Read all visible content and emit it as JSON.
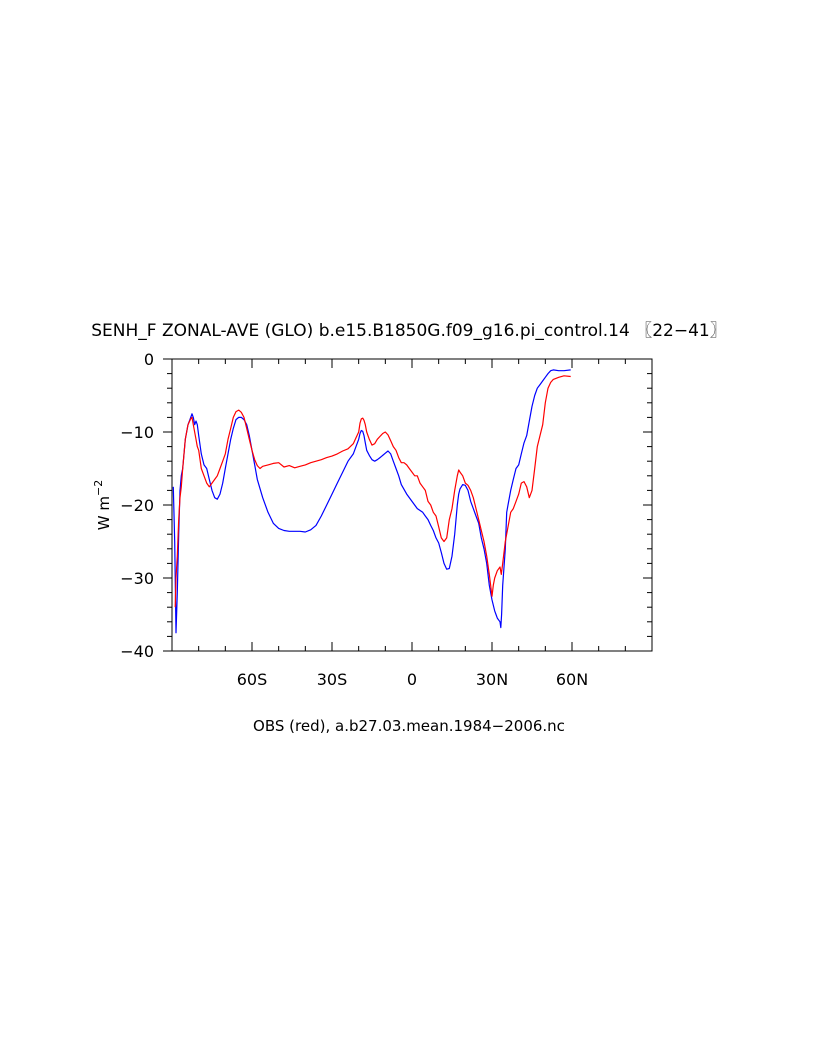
{
  "chart_data": {
    "type": "line",
    "title": "SENH_F ZONAL-AVE (GLO) b.e15.B1850G.f09_g16.pi_control.14 〖22−41〗",
    "ylabel_base": "W m",
    "ylabel_exp": "−2",
    "xlabel": "OBS (red), a.b27.03.mean.1984−2006.nc",
    "xlim": [
      -90,
      90
    ],
    "ylim": [
      -40,
      0
    ],
    "x_ticks": [
      {
        "value": -60,
        "label": "60S"
      },
      {
        "value": -30,
        "label": "30S"
      },
      {
        "value": 0,
        "label": "0"
      },
      {
        "value": 30,
        "label": "30N"
      },
      {
        "value": 60,
        "label": "60N"
      }
    ],
    "y_ticks": [
      {
        "value": 0,
        "label": "0"
      },
      {
        "value": -10,
        "label": "−10"
      },
      {
        "value": -20,
        "label": "−20"
      },
      {
        "value": -30,
        "label": "−30"
      },
      {
        "value": -40,
        "label": "−40"
      }
    ],
    "grid": false,
    "series": [
      {
        "color": "#0000ff",
        "points": [
          [
            -89.5,
            -17.5
          ],
          [
            -89,
            -25
          ],
          [
            -88.5,
            -37.5
          ],
          [
            -88,
            -32
          ],
          [
            -87.5,
            -24
          ],
          [
            -87,
            -18
          ],
          [
            -86.5,
            -16
          ],
          [
            -86,
            -15
          ],
          [
            -85.5,
            -13
          ],
          [
            -85,
            -11
          ],
          [
            -84,
            -9
          ],
          [
            -83,
            -8
          ],
          [
            -82.5,
            -7.5
          ],
          [
            -82,
            -8
          ],
          [
            -81.5,
            -9
          ],
          [
            -81,
            -8.5
          ],
          [
            -80.5,
            -9
          ],
          [
            -80,
            -10.5
          ],
          [
            -79,
            -13
          ],
          [
            -78,
            -14.5
          ],
          [
            -77,
            -15
          ],
          [
            -76,
            -16.5
          ],
          [
            -75,
            -18
          ],
          [
            -74,
            -19
          ],
          [
            -73,
            -19.2
          ],
          [
            -72,
            -18.5
          ],
          [
            -71,
            -17
          ],
          [
            -70,
            -15
          ],
          [
            -69,
            -13
          ],
          [
            -68,
            -11
          ],
          [
            -67,
            -9.5
          ],
          [
            -66,
            -8.3
          ],
          [
            -65,
            -8
          ],
          [
            -64,
            -8
          ],
          [
            -63,
            -8.3
          ],
          [
            -62,
            -9
          ],
          [
            -61,
            -10.5
          ],
          [
            -60,
            -12.5
          ],
          [
            -59,
            -14.5
          ],
          [
            -58,
            -16.5
          ],
          [
            -56,
            -19
          ],
          [
            -54,
            -21
          ],
          [
            -52,
            -22.5
          ],
          [
            -50,
            -23.2
          ],
          [
            -48,
            -23.5
          ],
          [
            -46,
            -23.6
          ],
          [
            -44,
            -23.6
          ],
          [
            -42,
            -23.6
          ],
          [
            -40,
            -23.7
          ],
          [
            -38,
            -23.4
          ],
          [
            -36,
            -22.8
          ],
          [
            -34,
            -21.5
          ],
          [
            -32,
            -20
          ],
          [
            -30,
            -18.5
          ],
          [
            -28,
            -17
          ],
          [
            -26,
            -15.5
          ],
          [
            -24,
            -14
          ],
          [
            -22,
            -13
          ],
          [
            -21,
            -12
          ],
          [
            -20,
            -11
          ],
          [
            -19.5,
            -10.2
          ],
          [
            -19,
            -9.8
          ],
          [
            -18.5,
            -9.9
          ],
          [
            -18,
            -10.5
          ],
          [
            -17.5,
            -11.5
          ],
          [
            -17,
            -12.5
          ],
          [
            -16,
            -13.2
          ],
          [
            -15,
            -13.8
          ],
          [
            -14,
            -14
          ],
          [
            -13,
            -13.8
          ],
          [
            -12,
            -13.5
          ],
          [
            -11,
            -13.2
          ],
          [
            -10,
            -12.9
          ],
          [
            -9,
            -12.6
          ],
          [
            -8,
            -13
          ],
          [
            -7,
            -14
          ],
          [
            -6,
            -15
          ],
          [
            -5,
            -16
          ],
          [
            -4,
            -17.2
          ],
          [
            -2,
            -18.5
          ],
          [
            0,
            -19.5
          ],
          [
            2,
            -20.5
          ],
          [
            4,
            -21
          ],
          [
            5,
            -21.5
          ],
          [
            6,
            -22
          ],
          [
            7,
            -22.8
          ],
          [
            8,
            -23.5
          ],
          [
            9,
            -24.5
          ],
          [
            10,
            -25.2
          ],
          [
            11,
            -26.5
          ],
          [
            12,
            -28
          ],
          [
            13,
            -28.8
          ],
          [
            14,
            -28.7
          ],
          [
            15,
            -27
          ],
          [
            16,
            -24
          ],
          [
            17,
            -20
          ],
          [
            17.5,
            -18.5
          ],
          [
            18,
            -17.8
          ],
          [
            19,
            -17.2
          ],
          [
            20,
            -17.3
          ],
          [
            21,
            -18
          ],
          [
            22,
            -19.5
          ],
          [
            23,
            -20.5
          ],
          [
            24,
            -21.5
          ],
          [
            25,
            -22.5
          ],
          [
            26,
            -24.5
          ],
          [
            27,
            -26
          ],
          [
            28,
            -28
          ],
          [
            29,
            -31
          ],
          [
            30,
            -33
          ],
          [
            31,
            -34.5
          ],
          [
            31.5,
            -35
          ],
          [
            32,
            -35.5
          ],
          [
            33,
            -36
          ],
          [
            33.3,
            -36.8
          ],
          [
            33.6,
            -35
          ],
          [
            34,
            -31
          ],
          [
            35,
            -26
          ],
          [
            35.5,
            -21
          ],
          [
            36,
            -20
          ],
          [
            37,
            -18
          ],
          [
            38,
            -16.5
          ],
          [
            39,
            -15
          ],
          [
            40,
            -14.5
          ],
          [
            41,
            -13
          ],
          [
            42,
            -11.5
          ],
          [
            43,
            -10.5
          ],
          [
            44,
            -8.5
          ],
          [
            45,
            -6.5
          ],
          [
            46,
            -5
          ],
          [
            47,
            -4
          ],
          [
            48,
            -3.5
          ],
          [
            49,
            -3
          ],
          [
            50,
            -2.5
          ],
          [
            51,
            -2
          ],
          [
            52,
            -1.6
          ],
          [
            53,
            -1.5
          ],
          [
            55,
            -1.6
          ],
          [
            57,
            -1.6
          ],
          [
            59.5,
            -1.5
          ]
        ]
      },
      {
        "color": "#ff0000",
        "points": [
          [
            -88.8,
            -34
          ],
          [
            -88.5,
            -30
          ],
          [
            -88,
            -27
          ],
          [
            -87.5,
            -22
          ],
          [
            -87,
            -19
          ],
          [
            -86.5,
            -17.5
          ],
          [
            -86,
            -15
          ],
          [
            -85.5,
            -13
          ],
          [
            -85,
            -11
          ],
          [
            -84,
            -9
          ],
          [
            -83,
            -8.2
          ],
          [
            -82.5,
            -8
          ],
          [
            -82,
            -9
          ],
          [
            -81,
            -11
          ],
          [
            -80.5,
            -12
          ],
          [
            -80,
            -12.5
          ],
          [
            -79,
            -15
          ],
          [
            -78,
            -16
          ],
          [
            -77,
            -17
          ],
          [
            -76,
            -17.5
          ],
          [
            -75,
            -17
          ],
          [
            -74,
            -16.5
          ],
          [
            -73,
            -16
          ],
          [
            -72,
            -15
          ],
          [
            -71,
            -14
          ],
          [
            -70,
            -13
          ],
          [
            -69,
            -11
          ],
          [
            -68,
            -9.5
          ],
          [
            -67,
            -8
          ],
          [
            -66,
            -7.2
          ],
          [
            -65,
            -7
          ],
          [
            -64,
            -7.3
          ],
          [
            -63,
            -8
          ],
          [
            -62,
            -9.5
          ],
          [
            -61,
            -11
          ],
          [
            -60,
            -12.5
          ],
          [
            -59,
            -13.8
          ],
          [
            -58,
            -14.6
          ],
          [
            -57,
            -15
          ],
          [
            -56,
            -14.7
          ],
          [
            -54,
            -14.5
          ],
          [
            -52,
            -14.3
          ],
          [
            -50,
            -14.2
          ],
          [
            -48,
            -14.8
          ],
          [
            -46,
            -14.6
          ],
          [
            -44,
            -14.9
          ],
          [
            -42,
            -14.7
          ],
          [
            -40,
            -14.5
          ],
          [
            -38,
            -14.2
          ],
          [
            -36,
            -14
          ],
          [
            -34,
            -13.8
          ],
          [
            -32,
            -13.5
          ],
          [
            -30,
            -13.3
          ],
          [
            -28,
            -13
          ],
          [
            -26,
            -12.6
          ],
          [
            -24,
            -12.3
          ],
          [
            -22,
            -11.6
          ],
          [
            -21,
            -10.8
          ],
          [
            -20,
            -10
          ],
          [
            -19.5,
            -8.8
          ],
          [
            -19,
            -8.2
          ],
          [
            -18.5,
            -8.1
          ],
          [
            -18,
            -8.4
          ],
          [
            -17.5,
            -9
          ],
          [
            -17,
            -10
          ],
          [
            -16,
            -11
          ],
          [
            -15,
            -11.8
          ],
          [
            -14,
            -11.6
          ],
          [
            -13,
            -11
          ],
          [
            -12,
            -10.6
          ],
          [
            -11,
            -10.2
          ],
          [
            -10,
            -10
          ],
          [
            -9,
            -10.4
          ],
          [
            -8,
            -11.2
          ],
          [
            -7,
            -12
          ],
          [
            -6,
            -12.5
          ],
          [
            -5,
            -13.5
          ],
          [
            -4,
            -14.2
          ],
          [
            -3,
            -14.2
          ],
          [
            -2,
            -14.5
          ],
          [
            -1,
            -15
          ],
          [
            0,
            -15.5
          ],
          [
            1,
            -16
          ],
          [
            2,
            -16
          ],
          [
            3,
            -17
          ],
          [
            4,
            -17.5
          ],
          [
            5,
            -18
          ],
          [
            6,
            -19.5
          ],
          [
            7,
            -20
          ],
          [
            8,
            -21
          ],
          [
            9,
            -21.5
          ],
          [
            10,
            -23
          ],
          [
            11,
            -24.5
          ],
          [
            12,
            -25
          ],
          [
            13,
            -24.5
          ],
          [
            14,
            -22
          ],
          [
            15,
            -20.5
          ],
          [
            16,
            -18
          ],
          [
            17,
            -16
          ],
          [
            17.5,
            -15.2
          ],
          [
            18,
            -15.5
          ],
          [
            19,
            -16
          ],
          [
            20,
            -17
          ],
          [
            21,
            -17.3
          ],
          [
            22,
            -18
          ],
          [
            23,
            -19
          ],
          [
            24,
            -20.5
          ],
          [
            25,
            -22
          ],
          [
            26,
            -23.5
          ],
          [
            27,
            -25
          ],
          [
            28,
            -27
          ],
          [
            29,
            -29.5
          ],
          [
            30,
            -32.5
          ],
          [
            30.5,
            -31
          ],
          [
            31,
            -30
          ],
          [
            32,
            -29
          ],
          [
            33,
            -28.5
          ],
          [
            33.5,
            -29.5
          ],
          [
            34,
            -28
          ],
          [
            35,
            -25
          ],
          [
            36,
            -23
          ],
          [
            37,
            -21
          ],
          [
            38,
            -20.5
          ],
          [
            39,
            -19.5
          ],
          [
            40,
            -18.5
          ],
          [
            41,
            -17
          ],
          [
            42,
            -16.8
          ],
          [
            43,
            -17.5
          ],
          [
            44,
            -19
          ],
          [
            45,
            -18
          ],
          [
            46,
            -15
          ],
          [
            47,
            -12
          ],
          [
            48,
            -10.5
          ],
          [
            49,
            -9
          ],
          [
            50,
            -6
          ],
          [
            51,
            -4
          ],
          [
            52,
            -3.2
          ],
          [
            53,
            -2.8
          ],
          [
            55,
            -2.5
          ],
          [
            57,
            -2.3
          ],
          [
            59.5,
            -2.4
          ]
        ]
      }
    ]
  }
}
